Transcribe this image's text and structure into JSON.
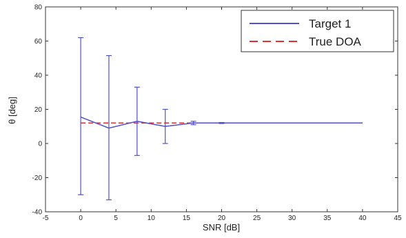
{
  "chart_data": {
    "type": "line",
    "xlabel": "SNR [dB]",
    "ylabel": "θ [deg]",
    "xlim": [
      -5,
      45
    ],
    "ylim": [
      -40,
      80
    ],
    "xticks": [
      -5,
      0,
      5,
      10,
      15,
      20,
      25,
      30,
      35,
      40,
      45
    ],
    "yticks": [
      -40,
      -20,
      0,
      20,
      40,
      60,
      80
    ],
    "grid": false,
    "legend_position": "top-right",
    "series": [
      {
        "name": "Target 1",
        "style": "solid",
        "color": "#5050c8",
        "x": [
          0,
          4,
          8,
          12,
          16,
          20,
          24,
          28,
          32,
          36,
          40
        ],
        "y": [
          15.5,
          9,
          13,
          10,
          12,
          12,
          12,
          12,
          12,
          12,
          12
        ],
        "error_bars": [
          {
            "x": 0,
            "low": -30,
            "high": 62
          },
          {
            "x": 4,
            "low": -33,
            "high": 51.5
          },
          {
            "x": 8,
            "low": -7,
            "high": 33
          },
          {
            "x": 12,
            "low": 0,
            "high": 20
          },
          {
            "x": 16,
            "low": 11,
            "high": 13
          },
          {
            "x": 20,
            "low": 11.7,
            "high": 12.3
          }
        ]
      },
      {
        "name": "True DOA",
        "style": "dashed",
        "color": "#e03030",
        "x": [
          0,
          40
        ],
        "y": [
          12,
          12
        ]
      }
    ]
  }
}
